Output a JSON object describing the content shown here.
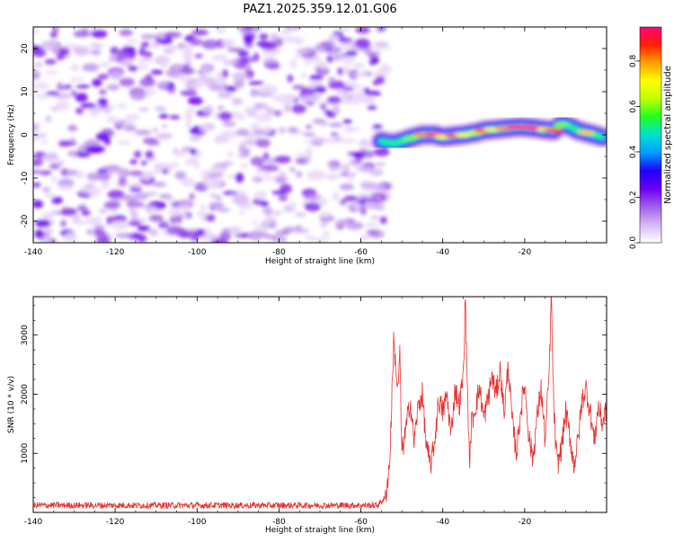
{
  "title": "PAZ1.2025.359.12.01.G06",
  "chart_data": [
    {
      "type": "heatmap",
      "name": "spectrogram",
      "xlabel": "Height of straight line (km)",
      "ylabel": "Frequency (Hz)",
      "xlim": [
        -140,
        0
      ],
      "ylim": [
        -25,
        25
      ],
      "xticks": [
        -140,
        -120,
        -100,
        -80,
        -60,
        -40,
        -20
      ],
      "yticks": [
        -20,
        -10,
        0,
        10,
        20
      ],
      "xtick_labels": [
        "-140",
        "-120",
        "-100",
        "-80",
        "-60",
        "-40",
        "-20"
      ],
      "ytick_labels": [
        "-20",
        "-10",
        "0",
        "10",
        "20"
      ],
      "noise_region_km": [
        -140,
        -55
      ],
      "ridge": {
        "x": [
          -55,
          -52,
          -50,
          -48,
          -45,
          -42,
          -40,
          -37,
          -35,
          -32,
          -30,
          -28,
          -25,
          -22,
          -20,
          -17,
          -15,
          -13,
          -11,
          -9,
          -7,
          -5,
          -3,
          -1
        ],
        "y": [
          -1.5,
          -2.0,
          -1.5,
          -0.8,
          0.0,
          0.0,
          -0.5,
          -0.2,
          0.0,
          0.5,
          1.0,
          1.2,
          1.5,
          1.8,
          1.8,
          1.5,
          1.2,
          1.0,
          2.5,
          2.0,
          1.0,
          0.5,
          0.0,
          -0.5
        ],
        "amplitude": [
          0.35,
          0.5,
          0.55,
          0.6,
          0.8,
          0.95,
          0.7,
          0.95,
          0.7,
          0.65,
          0.85,
          0.7,
          0.8,
          0.95,
          0.95,
          0.95,
          0.7,
          0.85,
          0.6,
          0.5,
          0.45,
          0.75,
          0.45,
          0.35
        ]
      },
      "colorbar": {
        "label": "Normalized spectral amplitude",
        "range": [
          0,
          0.95
        ],
        "ticks": [
          0.0,
          0.2,
          0.4,
          0.6,
          0.8
        ],
        "tick_labels": [
          "0.0",
          "0.2",
          "0.4",
          "0.6",
          "0.8"
        ],
        "colors": [
          "#ffffff",
          "#d8b8f4",
          "#a060e8",
          "#6a00f0",
          "#2000ff",
          "#00a0ff",
          "#00e0d0",
          "#20ff20",
          "#c0ff00",
          "#ffff00",
          "#ffa000",
          "#ff2000",
          "#ff0080"
        ]
      }
    },
    {
      "type": "line",
      "name": "snr",
      "xlabel": "Height of straight line (km)",
      "ylabel": "SNR (10 * v/v)",
      "xlim": [
        -140,
        0
      ],
      "ylim": [
        0,
        3650
      ],
      "xticks": [
        -140,
        -120,
        -100,
        -80,
        -60,
        -40,
        -20
      ],
      "yticks": [
        1000,
        2000,
        3000
      ],
      "xtick_labels": [
        "-140",
        "-120",
        "-100",
        "-80",
        "-60",
        "-40",
        "-20"
      ],
      "ytick_labels": [
        "1000",
        "2000",
        "3000"
      ],
      "color": "#e83030",
      "x": [
        -140,
        -56,
        -54,
        -53,
        -52.5,
        -52,
        -51.5,
        -51,
        -50.5,
        -50,
        -49,
        -48,
        -47,
        -46,
        -45,
        -44,
        -43,
        -42,
        -41,
        -40,
        -39,
        -38,
        -37,
        -36,
        -35,
        -34.5,
        -34,
        -33.5,
        -33,
        -32,
        -31,
        -30,
        -29,
        -28,
        -27,
        -26,
        -25,
        -24,
        -23,
        -22,
        -21,
        -20,
        -19,
        -18,
        -17,
        -16,
        -15,
        -14,
        -13.5,
        -13,
        -12.5,
        -12,
        -11,
        -10,
        -9,
        -8,
        -7,
        -6,
        -5,
        -4,
        -3,
        -2,
        -1,
        0
      ],
      "y": [
        120,
        120,
        250,
        800,
        1800,
        2900,
        2500,
        2000,
        2700,
        1000,
        1400,
        1900,
        1200,
        1800,
        2000,
        1100,
        800,
        1200,
        1900,
        1700,
        2000,
        1300,
        2100,
        1800,
        2300,
        3600,
        2200,
        800,
        1500,
        1800,
        2100,
        1600,
        1900,
        2300,
        2000,
        2400,
        1700,
        2500,
        1500,
        1000,
        1700,
        2200,
        1300,
        900,
        1600,
        2100,
        1200,
        2400,
        3700,
        2000,
        1200,
        800,
        1100,
        1700,
        1300,
        800,
        1200,
        1900,
        2100,
        1700,
        1200,
        1800,
        1500,
        1800
      ]
    }
  ]
}
